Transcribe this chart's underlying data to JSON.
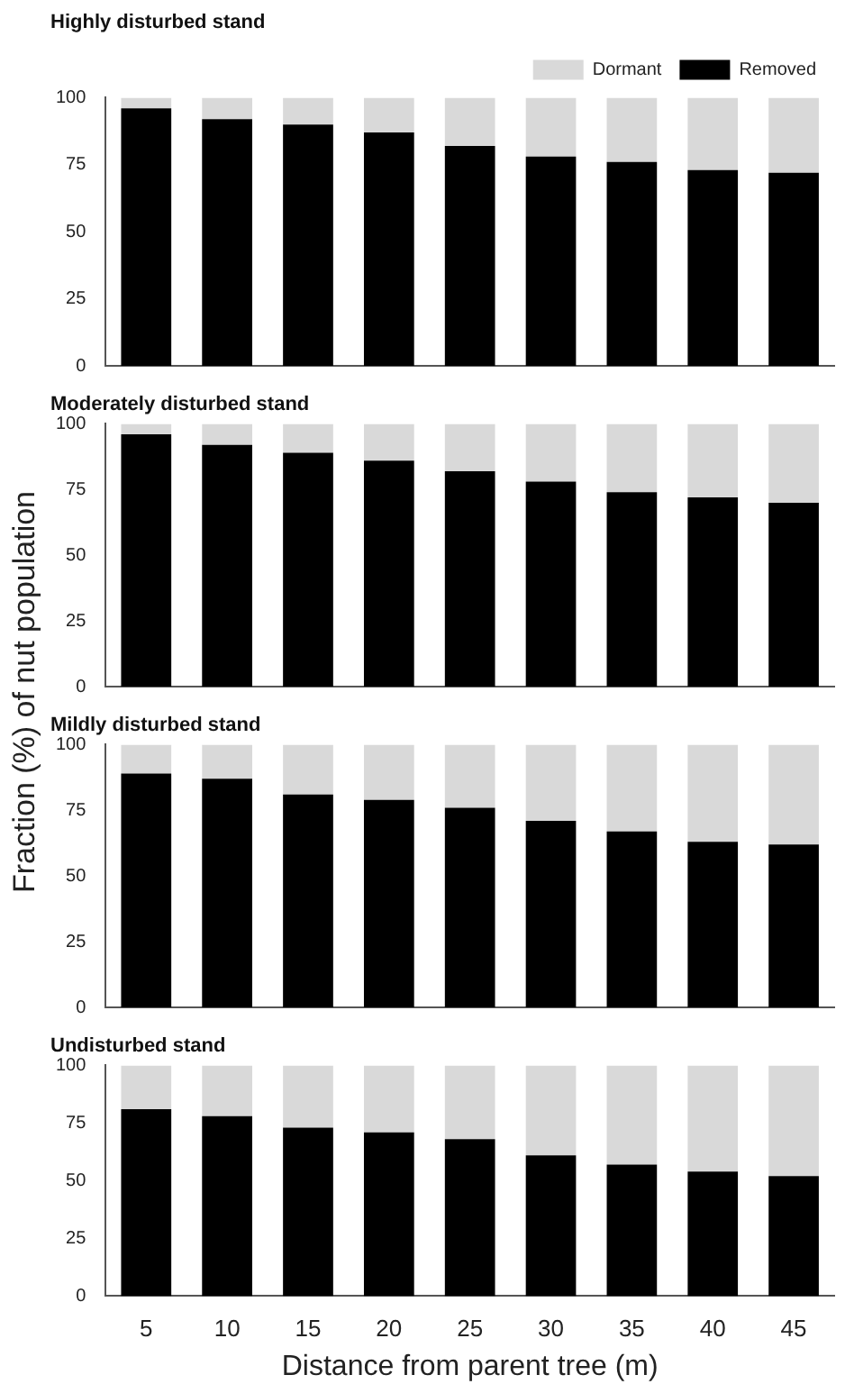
{
  "chart_data": [
    {
      "type": "bar",
      "title": "Highly disturbed stand",
      "categories": [
        "5",
        "10",
        "15",
        "20",
        "25",
        "30",
        "35",
        "40",
        "45"
      ],
      "stacked": true,
      "legend": "top right",
      "grid": false,
      "tick_labels": "y",
      "ylim": [
        0,
        100
      ],
      "yticks": [
        0,
        25,
        50,
        75,
        100
      ],
      "series": [
        {
          "name": "Removed",
          "color": "#000000",
          "values": [
            96,
            92,
            90,
            87,
            82,
            78,
            76,
            73,
            72
          ]
        },
        {
          "name": "Dormant",
          "color": "#d9d9d9",
          "values": [
            4,
            8,
            10,
            13,
            18,
            22,
            24,
            27,
            28
          ]
        }
      ]
    },
    {
      "type": "bar",
      "title": "Moderately disturbed stand",
      "ylabel": "Fraction (%) of nut population",
      "categories": [
        "5",
        "10",
        "15",
        "20",
        "25",
        "30",
        "35",
        "40",
        "45"
      ],
      "stacked": true,
      "grid": false,
      "tick_labels": "y",
      "ylim": [
        0,
        100
      ],
      "yticks": [
        0,
        25,
        50,
        75,
        100
      ],
      "series": [
        {
          "color": "#000000",
          "values": [
            96,
            92,
            89,
            86,
            82,
            78,
            74,
            72,
            70
          ]
        },
        {
          "color": "#d9d9d9",
          "values": [
            4,
            8,
            11,
            14,
            18,
            22,
            26,
            28,
            30
          ]
        }
      ]
    },
    {
      "type": "bar",
      "title": "Mildly disturbed stand",
      "categories": [
        "5",
        "10",
        "15",
        "20",
        "25",
        "30",
        "35",
        "40",
        "45"
      ],
      "stacked": true,
      "grid": false,
      "tick_labels": "y",
      "ylim": [
        0,
        100
      ],
      "yticks": [
        0,
        25,
        50,
        75,
        100
      ],
      "series": [
        {
          "color": "#000000",
          "values": [
            89,
            87,
            81,
            79,
            76,
            71,
            67,
            63,
            62
          ]
        },
        {
          "color": "#d9d9d9",
          "values": [
            11,
            13,
            19,
            21,
            24,
            29,
            33,
            37,
            38
          ]
        }
      ]
    },
    {
      "type": "bar",
      "title": "Undisturbed stand",
      "xlabel": "Distance from parent tree (m)",
      "categories": [
        "5",
        "10",
        "15",
        "20",
        "25",
        "30",
        "35",
        "40",
        "45"
      ],
      "stacked": true,
      "grid": false,
      "ylim": [
        0,
        100
      ],
      "yticks": [
        0,
        25,
        50,
        75,
        100
      ],
      "series": [
        {
          "color": "#000000",
          "values": [
            81,
            78,
            73,
            71,
            68,
            61,
            57,
            54,
            52
          ]
        },
        {
          "color": "#d9d9d9",
          "values": [
            19,
            22,
            27,
            29,
            32,
            39,
            43,
            46,
            48
          ]
        }
      ]
    }
  ]
}
